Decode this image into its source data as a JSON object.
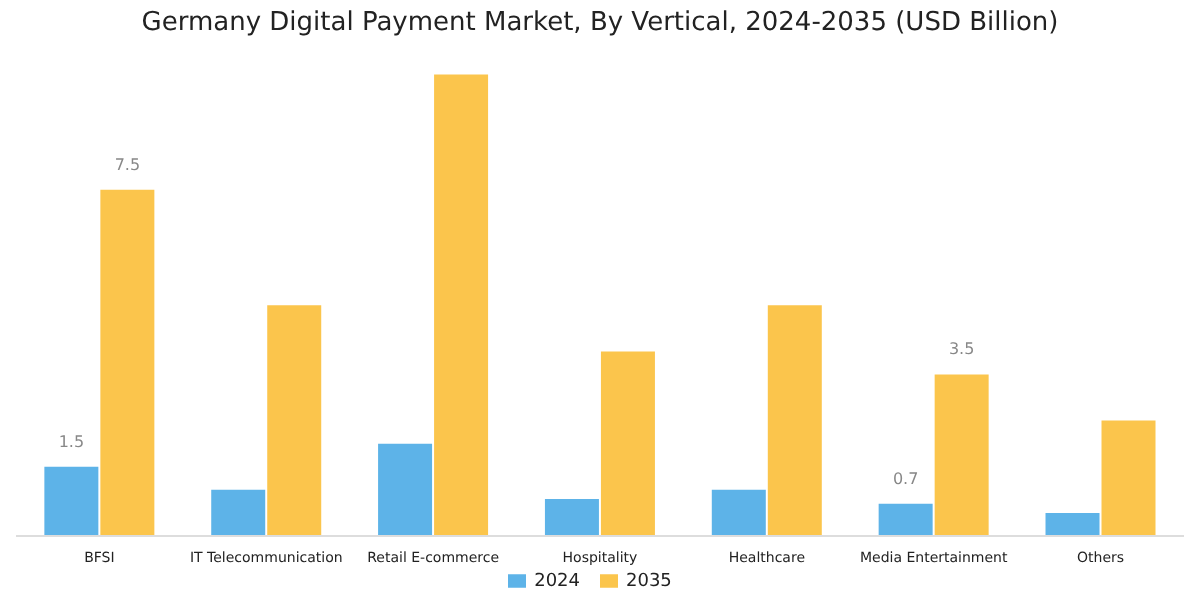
{
  "chart_data": {
    "type": "bar",
    "title": "Germany Digital Payment Market, By Vertical, 2024-2035 (USD Billion)",
    "categories": [
      "BFSI",
      "IT Telecommunication",
      "Retail E-commerce",
      "Hospitality",
      "Healthcare",
      "Media Entertainment",
      "Others"
    ],
    "series": [
      {
        "name": "2024",
        "color": "#5db3e8",
        "values": [
          1.5,
          1.0,
          2.0,
          0.8,
          1.0,
          0.7,
          0.5
        ],
        "value_labels": [
          "1.5",
          null,
          null,
          null,
          null,
          "0.7",
          null
        ]
      },
      {
        "name": "2035",
        "color": "#fbc54c",
        "values": [
          7.5,
          5.0,
          10.0,
          4.0,
          5.0,
          3.5,
          2.5
        ],
        "value_labels": [
          "7.5",
          null,
          null,
          null,
          null,
          "3.5",
          null
        ]
      }
    ],
    "legend": "bottom"
  }
}
